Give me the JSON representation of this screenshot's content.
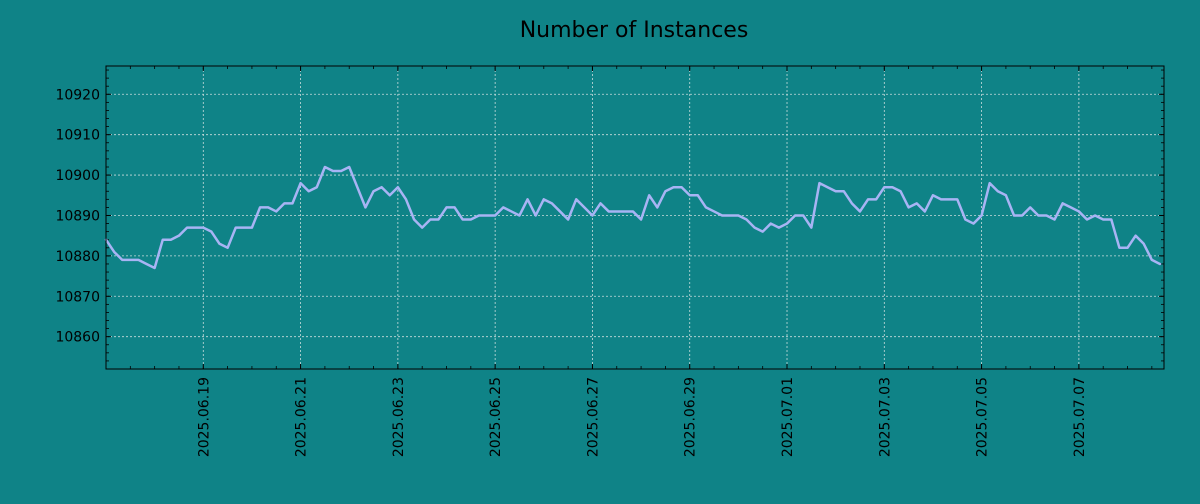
{
  "chart_data": {
    "type": "line",
    "title": "Number of Instances",
    "xlabel": "",
    "ylabel": "",
    "x_range": [
      "2025-06-17 00:00",
      "2025-07-08 18:00"
    ],
    "ylim": [
      10852,
      10927
    ],
    "y_ticks": [
      10860,
      10870,
      10880,
      10890,
      10900,
      10910,
      10920
    ],
    "x_ticks": [
      "2025.06.19",
      "2025.06.21",
      "2025.06.23",
      "2025.06.25",
      "2025.06.27",
      "2025.06.29",
      "2025.07.01",
      "2025.07.03",
      "2025.07.05",
      "2025.07.07"
    ],
    "grid": true,
    "colors": {
      "background": "#0f8387",
      "line": "#a8b4f4",
      "grid": "#c8dcdc",
      "axes": "#000000"
    },
    "series": [
      {
        "x": [
          "2025-06-17 00:00",
          "2025-06-17 04:00",
          "2025-06-17 08:00",
          "2025-06-17 12:00",
          "2025-06-17 16:00",
          "2025-06-17 20:00",
          "2025-06-18 00:00",
          "2025-06-18 04:00",
          "2025-06-18 08:00",
          "2025-06-18 12:00",
          "2025-06-18 16:00",
          "2025-06-18 20:00",
          "2025-06-19 00:00",
          "2025-06-19 04:00",
          "2025-06-19 08:00",
          "2025-06-19 12:00",
          "2025-06-19 16:00",
          "2025-06-19 20:00",
          "2025-06-20 00:00",
          "2025-06-20 04:00",
          "2025-06-20 08:00",
          "2025-06-20 12:00",
          "2025-06-20 16:00",
          "2025-06-20 20:00",
          "2025-06-21 00:00",
          "2025-06-21 04:00",
          "2025-06-21 08:00",
          "2025-06-21 12:00",
          "2025-06-21 16:00",
          "2025-06-21 20:00",
          "2025-06-22 00:00",
          "2025-06-22 04:00",
          "2025-06-22 08:00",
          "2025-06-22 12:00",
          "2025-06-22 16:00",
          "2025-06-22 20:00",
          "2025-06-23 00:00",
          "2025-06-23 04:00",
          "2025-06-23 08:00",
          "2025-06-23 12:00",
          "2025-06-23 16:00",
          "2025-06-23 20:00",
          "2025-06-24 00:00",
          "2025-06-24 04:00",
          "2025-06-24 08:00",
          "2025-06-24 12:00",
          "2025-06-24 16:00",
          "2025-06-24 20:00",
          "2025-06-25 00:00",
          "2025-06-25 04:00",
          "2025-06-25 08:00",
          "2025-06-25 12:00",
          "2025-06-25 16:00",
          "2025-06-25 20:00",
          "2025-06-26 00:00",
          "2025-06-26 04:00",
          "2025-06-26 08:00",
          "2025-06-26 12:00",
          "2025-06-26 16:00",
          "2025-06-26 20:00",
          "2025-06-27 00:00",
          "2025-06-27 04:00",
          "2025-06-27 08:00",
          "2025-06-27 12:00",
          "2025-06-27 16:00",
          "2025-06-27 20:00",
          "2025-06-28 00:00",
          "2025-06-28 04:00",
          "2025-06-28 08:00",
          "2025-06-28 12:00",
          "2025-06-28 16:00",
          "2025-06-28 20:00",
          "2025-06-29 00:00",
          "2025-06-29 04:00",
          "2025-06-29 08:00",
          "2025-06-29 12:00",
          "2025-06-29 16:00",
          "2025-06-29 20:00",
          "2025-06-30 00:00",
          "2025-06-30 04:00",
          "2025-06-30 08:00",
          "2025-06-30 12:00",
          "2025-06-30 16:00",
          "2025-06-30 20:00",
          "2025-07-01 00:00",
          "2025-07-01 04:00",
          "2025-07-01 08:00",
          "2025-07-01 12:00",
          "2025-07-01 16:00",
          "2025-07-01 20:00",
          "2025-07-02 00:00",
          "2025-07-02 04:00",
          "2025-07-02 08:00",
          "2025-07-02 12:00",
          "2025-07-02 16:00",
          "2025-07-02 20:00",
          "2025-07-03 00:00",
          "2025-07-03 04:00",
          "2025-07-03 08:00",
          "2025-07-03 12:00",
          "2025-07-03 16:00",
          "2025-07-03 20:00",
          "2025-07-04 00:00",
          "2025-07-04 04:00",
          "2025-07-04 08:00",
          "2025-07-04 12:00",
          "2025-07-04 16:00",
          "2025-07-04 20:00",
          "2025-07-05 00:00",
          "2025-07-05 04:00",
          "2025-07-05 08:00",
          "2025-07-05 12:00",
          "2025-07-05 16:00",
          "2025-07-05 20:00",
          "2025-07-06 00:00",
          "2025-07-06 04:00",
          "2025-07-06 08:00",
          "2025-07-06 12:00",
          "2025-07-06 16:00",
          "2025-07-06 20:00",
          "2025-07-07 00:00",
          "2025-07-07 04:00",
          "2025-07-07 08:00",
          "2025-07-07 12:00",
          "2025-07-07 16:00",
          "2025-07-07 20:00",
          "2025-07-08 00:00",
          "2025-07-08 04:00",
          "2025-07-08 08:00",
          "2025-07-08 12:00",
          "2025-07-08 16:00"
        ],
        "y": [
          10884,
          10881,
          10879,
          10879,
          10879,
          10878,
          10877,
          10884,
          10884,
          10885,
          10887,
          10887,
          10887,
          10886,
          10883,
          10882,
          10887,
          10887,
          10887,
          10892,
          10892,
          10891,
          10893,
          10893,
          10898,
          10896,
          10897,
          10902,
          10901,
          10901,
          10902,
          10897,
          10892,
          10896,
          10897,
          10895,
          10897,
          10894,
          10889,
          10887,
          10889,
          10889,
          10892,
          10892,
          10889,
          10889,
          10890,
          10890,
          10890,
          10892,
          10891,
          10890,
          10894,
          10890,
          10894,
          10893,
          10891,
          10889,
          10894,
          10892,
          10890,
          10893,
          10891,
          10891,
          10891,
          10891,
          10889,
          10895,
          10892,
          10896,
          10897,
          10897,
          10895,
          10895,
          10892,
          10891,
          10890,
          10890,
          10890,
          10889,
          10887,
          10886,
          10888,
          10887,
          10888,
          10890,
          10890,
          10887,
          10898,
          10897,
          10896,
          10896,
          10893,
          10891,
          10894,
          10894,
          10897,
          10897,
          10896,
          10892,
          10893,
          10891,
          10895,
          10894,
          10894,
          10894,
          10889,
          10888,
          10890,
          10898,
          10896,
          10895,
          10890,
          10890,
          10892,
          10890,
          10890,
          10889,
          10893,
          10892,
          10891,
          10889,
          10890,
          10889,
          10889,
          10882,
          10882,
          10885,
          10883,
          10879,
          10878
        ]
      }
    ]
  }
}
